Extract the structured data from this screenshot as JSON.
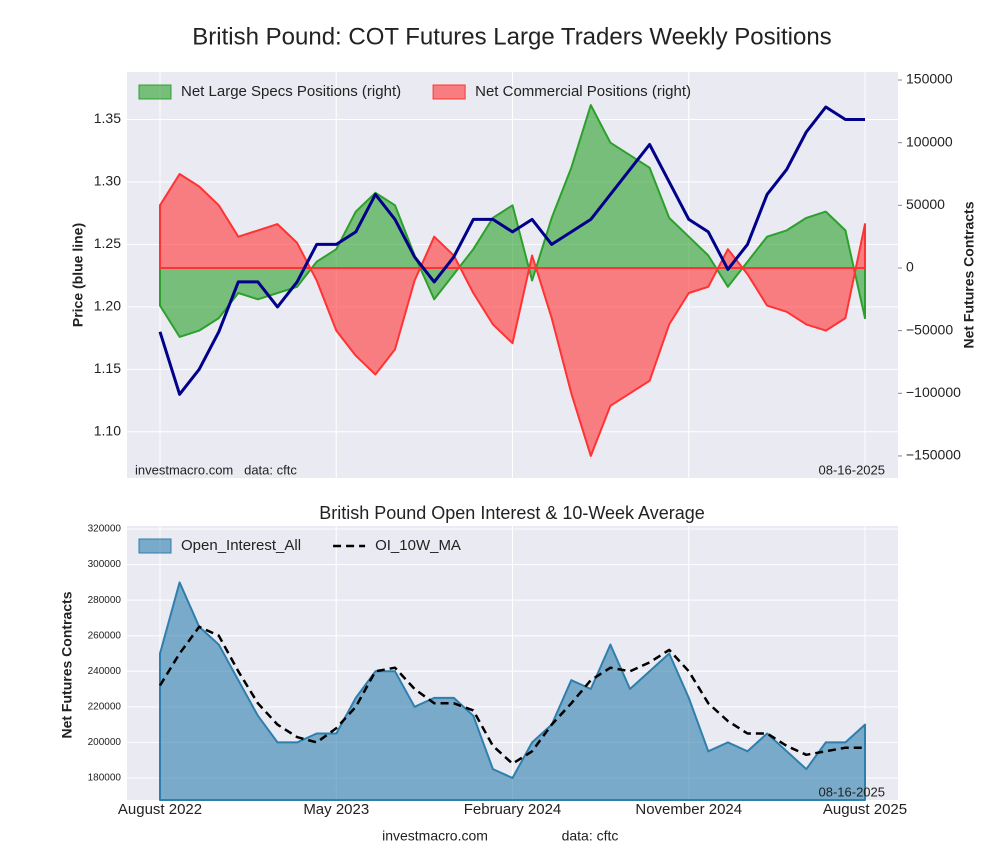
{
  "chart_data": [
    {
      "type": "line",
      "title": "British Pound: COT Futures Large Traders Weekly Positions",
      "ylabel": "Price (blue line)",
      "y2label": "Net Futures Contracts",
      "annotations": [
        "investmacro.com   data: cftc",
        "08-16-2025"
      ],
      "x": [
        "2022-08",
        "2022-09",
        "2022-10",
        "2022-11",
        "2022-12",
        "2023-01",
        "2023-02",
        "2023-03",
        "2023-04",
        "2023-05",
        "2023-06",
        "2023-07",
        "2023-08",
        "2023-09",
        "2023-10",
        "2023-11",
        "2023-12",
        "2024-01",
        "2024-02",
        "2024-03",
        "2024-04",
        "2024-05",
        "2024-06",
        "2024-07",
        "2024-08",
        "2024-09",
        "2024-10",
        "2024-11",
        "2024-12",
        "2025-01",
        "2025-02",
        "2025-03",
        "2025-04",
        "2025-05",
        "2025-06",
        "2025-07",
        "2025-08"
      ],
      "ylim": [
        1.063,
        1.388
      ],
      "yticks": [
        {
          "value": 1.1,
          "label": "1.10"
        },
        1.15,
        {
          "value": 1.2,
          "label": "1.20"
        },
        1.25,
        {
          "value": 1.3,
          "label": "1.30"
        },
        1.35
      ],
      "y2lim": [
        -167600,
        156400
      ],
      "y2ticks": [
        {
          "value": -150000,
          "label": "−150000"
        },
        {
          "value": -100000,
          "label": "−100000"
        },
        {
          "value": -50000,
          "label": "−50000"
        },
        0,
        50000,
        100000,
        150000
      ],
      "grid": true,
      "legend": "upper left",
      "series": [
        {
          "name": "Net Large Specs Positions (right)",
          "color": "#2ca02c",
          "axis": "y2",
          "kind": "area",
          "values": [
            -30000,
            -55000,
            -50000,
            -40000,
            -20000,
            -25000,
            -20000,
            -15000,
            5000,
            15000,
            45000,
            60000,
            50000,
            10000,
            -25000,
            -5000,
            15000,
            40000,
            50000,
            -10000,
            40000,
            80000,
            130000,
            100000,
            90000,
            80000,
            40000,
            25000,
            10000,
            -15000,
            5000,
            25000,
            30000,
            40000,
            45000,
            30000,
            -40000
          ]
        },
        {
          "name": "Net Commercial Positions (right)",
          "color": "#ff3333",
          "axis": "y2",
          "kind": "area",
          "values": [
            50000,
            75000,
            65000,
            50000,
            25000,
            30000,
            35000,
            20000,
            -10000,
            -50000,
            -70000,
            -85000,
            -65000,
            -10000,
            25000,
            10000,
            -20000,
            -45000,
            -60000,
            10000,
            -40000,
            -100000,
            -150000,
            -110000,
            -100000,
            -90000,
            -45000,
            -20000,
            -15000,
            15000,
            -5000,
            -30000,
            -35000,
            -45000,
            -50000,
            -40000,
            35000
          ]
        },
        {
          "color": "#00008b",
          "kind": "line",
          "values": [
            1.18,
            1.13,
            1.15,
            1.18,
            1.22,
            1.22,
            1.2,
            1.22,
            1.25,
            1.25,
            1.26,
            1.29,
            1.27,
            1.24,
            1.22,
            1.24,
            1.27,
            1.27,
            1.26,
            1.27,
            1.25,
            1.26,
            1.27,
            1.29,
            1.31,
            1.33,
            1.3,
            1.27,
            1.26,
            1.23,
            1.25,
            1.29,
            1.31,
            1.34,
            1.36,
            1.35,
            1.35
          ]
        }
      ]
    },
    {
      "type": "area",
      "title": "British Pound Open Interest & 10-Week Average",
      "ylabel": "Net Futures Contracts",
      "annotations": [
        "08-16-2025"
      ],
      "x": [
        "2022-08",
        "2022-09",
        "2022-10",
        "2022-11",
        "2022-12",
        "2023-01",
        "2023-02",
        "2023-03",
        "2023-04",
        "2023-05",
        "2023-06",
        "2023-07",
        "2023-08",
        "2023-09",
        "2023-10",
        "2023-11",
        "2023-12",
        "2024-01",
        "2024-02",
        "2024-03",
        "2024-04",
        "2024-05",
        "2024-06",
        "2024-07",
        "2024-08",
        "2024-09",
        "2024-10",
        "2024-11",
        "2024-12",
        "2025-01",
        "2025-02",
        "2025-03",
        "2025-04",
        "2025-05",
        "2025-06",
        "2025-07",
        "2025-08"
      ],
      "xticks": [
        {
          "value": "2022-08",
          "label": "August 2022"
        },
        {
          "value": "2023-05",
          "label": "May 2023"
        },
        {
          "value": "2024-02",
          "label": "February 2024"
        },
        {
          "value": "2024-11",
          "label": "November 2024"
        },
        {
          "value": "2025-08",
          "label": "August 2025"
        }
      ],
      "ylim": [
        167600,
        321700
      ],
      "yticks": [
        180000,
        200000,
        220000,
        240000,
        260000,
        280000,
        300000,
        320000
      ],
      "grid": true,
      "legend": "upper left",
      "series": [
        {
          "name": "Open_Interest_All",
          "color": "#2e7fad",
          "kind": "area",
          "values": [
            250000,
            290000,
            265000,
            255000,
            235000,
            215000,
            200000,
            200000,
            205000,
            205000,
            225000,
            240000,
            240000,
            220000,
            225000,
            225000,
            215000,
            185000,
            180000,
            200000,
            210000,
            235000,
            230000,
            255000,
            230000,
            240000,
            250000,
            225000,
            195000,
            200000,
            195000,
            205000,
            195000,
            185000,
            200000,
            200000,
            210000
          ]
        },
        {
          "name": "OI_10W_MA",
          "color": "#000000",
          "kind": "line",
          "dash": true,
          "values": [
            232000,
            250000,
            265000,
            260000,
            240000,
            222000,
            210000,
            203000,
            200000,
            208000,
            220000,
            240000,
            242000,
            230000,
            222000,
            222000,
            218000,
            198000,
            188000,
            195000,
            210000,
            222000,
            235000,
            242000,
            240000,
            245000,
            252000,
            240000,
            222000,
            212000,
            205000,
            205000,
            198000,
            193000,
            195000,
            197000,
            197000
          ]
        }
      ]
    }
  ],
  "footer": [
    "investmacro.com",
    "data: cftc"
  ]
}
